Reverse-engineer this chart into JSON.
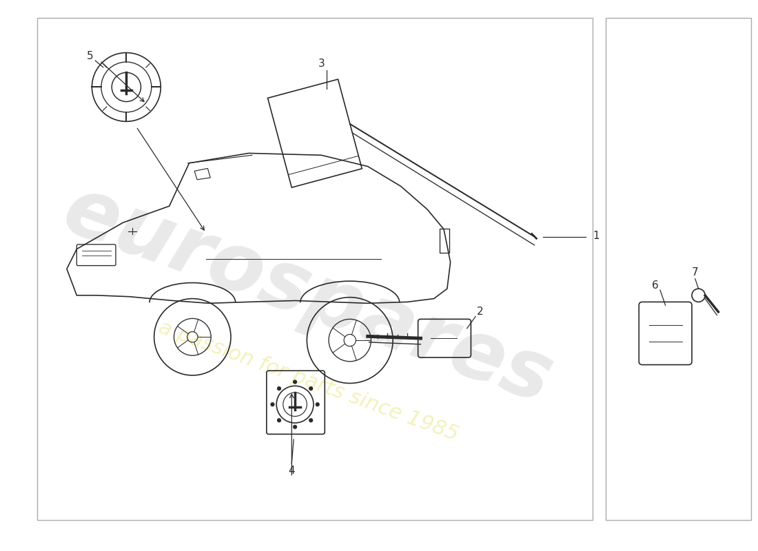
{
  "bg_color": "#ffffff",
  "border_color": "#aaaaaa",
  "line_color": "#2a2a2a",
  "car_linewidth": 1.2,
  "watermark1": "eurospares",
  "watermark2": "a passion for parts since 1985",
  "wm1_color": "#e0e0e0",
  "wm2_color": "#f0f0b0",
  "label_fontsize": 11
}
